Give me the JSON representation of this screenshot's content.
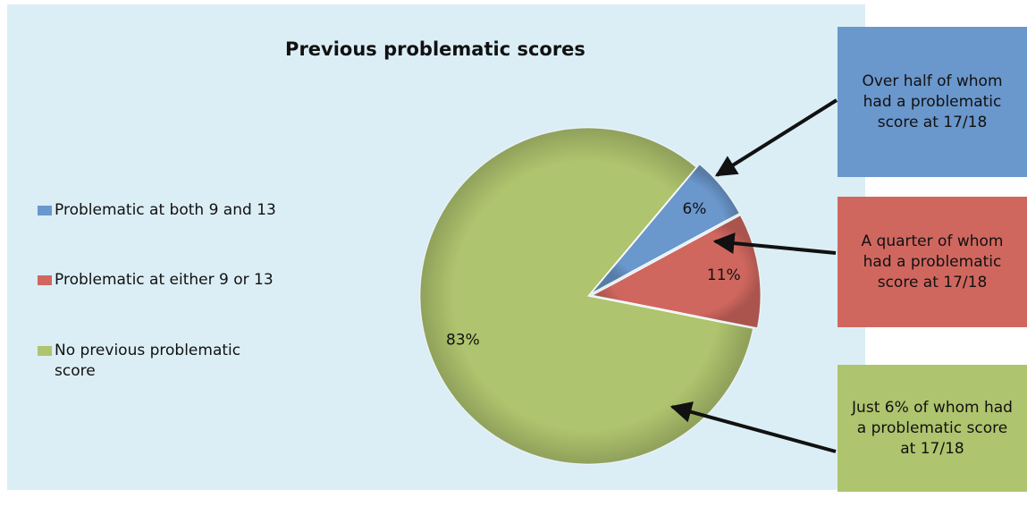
{
  "chart_data": {
    "type": "pie",
    "title": "Previous problematic scores",
    "categories": [
      "Problematic at both 9 and 13",
      "Problematic at either 9 or 13",
      "No previous problematic score"
    ],
    "values": [
      6,
      11,
      83
    ],
    "value_labels": [
      "6%",
      "11%",
      "83%"
    ],
    "colors": [
      "#6a97cc",
      "#d0675f",
      "#afc46e"
    ],
    "annotations": [
      "Over half of whom had a problematic score at 17/18",
      "A quarter of whom had a problematic score at 17/18",
      "Just 6% of whom had a problematic score at 17/18"
    ]
  }
}
